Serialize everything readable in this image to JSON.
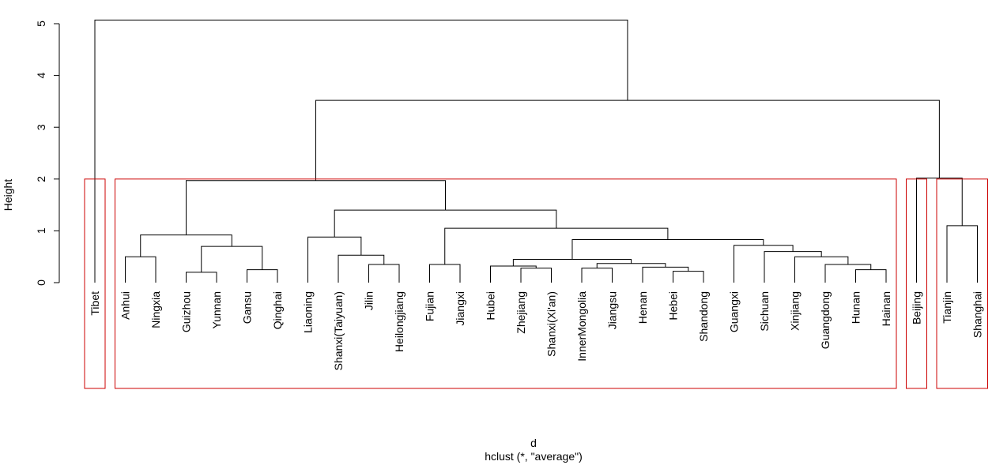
{
  "chart_data": {
    "type": "dendrogram",
    "method": "hclust (*, \"average\")",
    "xlabel": "d",
    "sub": "hclust (*, \"average\")",
    "ylabel": "Height",
    "ylim": [
      0,
      5
    ],
    "yticks": [
      "0",
      "1",
      "2",
      "3",
      "4",
      "5"
    ],
    "leaves": [
      "Tibet",
      "Anhui",
      "Ningxia",
      "Guizhou",
      "Yunnan",
      "Gansu",
      "Qinghai",
      "Liaoning",
      "Shanxi(Taiyuan)",
      "Jilin",
      "Heilongjiang",
      "Fujian",
      "Jiangxi",
      "Hubei",
      "Zhejiang",
      "Shanxi(Xi'an)",
      "InnerMongolia",
      "Jiangsu",
      "Henan",
      "Hebei",
      "Shandong",
      "Guangxi",
      "Sichuan",
      "Xinjiang",
      "Guangdong",
      "Hunan",
      "Hainan",
      "Beijing",
      "Tianjin",
      "Shanghai"
    ],
    "merges": [
      {
        "id": "c1",
        "a": "Hunan",
        "b": "Hainan",
        "h": 0.25
      },
      {
        "id": "c2",
        "a": "Gansu",
        "b": "Qinghai",
        "h": 0.25
      },
      {
        "id": "c3",
        "a": "Hebei",
        "b": "Shandong",
        "h": 0.22
      },
      {
        "id": "c4",
        "a": "Zhejiang",
        "b": "Shanxi(Xi'an)",
        "h": 0.28
      },
      {
        "id": "c5",
        "a": "InnerMongolia",
        "b": "Jiangsu",
        "h": 0.28
      },
      {
        "id": "c6",
        "a": "Guizhou",
        "b": "Yunnan",
        "h": 0.2
      },
      {
        "id": "c7",
        "a": "Henan",
        "b": "c3",
        "h": 0.3
      },
      {
        "id": "c8",
        "a": "Hubei",
        "b": "c4",
        "h": 0.32
      },
      {
        "id": "c9",
        "a": "Fujian",
        "b": "Jiangxi",
        "h": 0.35
      },
      {
        "id": "c10",
        "a": "Jilin",
        "b": "Heilongjiang",
        "h": 0.35
      },
      {
        "id": "c11",
        "a": "Guangdong",
        "b": "c1",
        "h": 0.35
      },
      {
        "id": "c12",
        "a": "c5",
        "b": "c7",
        "h": 0.37
      },
      {
        "id": "c13",
        "a": "c8",
        "b": "c12",
        "h": 0.45
      },
      {
        "id": "c14",
        "a": "Anhui",
        "b": "Ningxia",
        "h": 0.5
      },
      {
        "id": "c15",
        "a": "Xinjiang",
        "b": "c11",
        "h": 0.5
      },
      {
        "id": "c16",
        "a": "Shanxi(Taiyuan)",
        "b": "c10",
        "h": 0.53
      },
      {
        "id": "c17",
        "a": "Sichuan",
        "b": "c15",
        "h": 0.6
      },
      {
        "id": "c18",
        "a": "c6",
        "b": "c2",
        "h": 0.7
      },
      {
        "id": "c19",
        "a": "Guangxi",
        "b": "c17",
        "h": 0.72
      },
      {
        "id": "c20",
        "a": "c13",
        "b": "c19",
        "h": 0.83
      },
      {
        "id": "c21",
        "a": "Liaoning",
        "b": "c16",
        "h": 0.88
      },
      {
        "id": "c22",
        "a": "c14",
        "b": "c18",
        "h": 0.92
      },
      {
        "id": "c23",
        "a": "c9",
        "b": "c20",
        "h": 1.05
      },
      {
        "id": "c24",
        "a": "Tianjin",
        "b": "Shanghai",
        "h": 1.1
      },
      {
        "id": "c25",
        "a": "c21",
        "b": "c23",
        "h": 1.4
      },
      {
        "id": "c26",
        "a": "c22",
        "b": "c25",
        "h": 1.97
      },
      {
        "id": "c27",
        "a": "Beijing",
        "b": "c24",
        "h": 2.02
      },
      {
        "id": "c28",
        "a": "c26",
        "b": "c27",
        "h": 3.52
      },
      {
        "id": "c29",
        "a": "Tibet",
        "b": "c28",
        "h": 5.07
      }
    ],
    "cluster_boxes": [
      {
        "first": "Tibet",
        "last": "Tibet",
        "color": "#cc0000"
      },
      {
        "first": "Anhui",
        "last": "Hainan",
        "color": "#cc0000"
      },
      {
        "first": "Beijing",
        "last": "Beijing",
        "color": "#cc0000"
      },
      {
        "first": "Tianjin",
        "last": "Shanghai",
        "color": "#cc0000"
      }
    ],
    "line_color": "#000000",
    "box_color": "#cc0000"
  }
}
